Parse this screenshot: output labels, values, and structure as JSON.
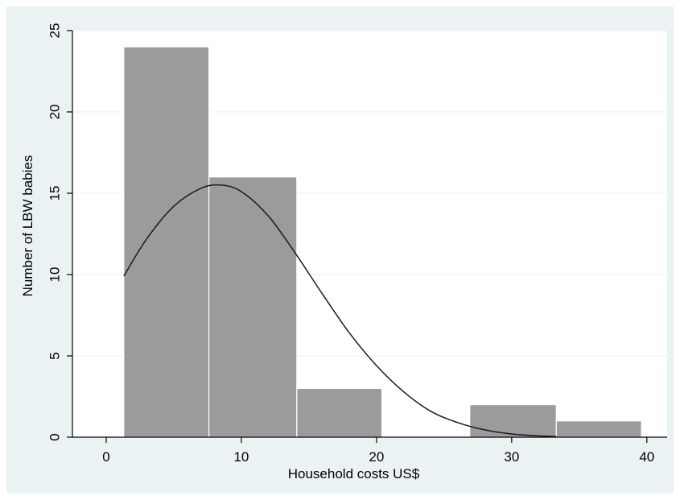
{
  "chart_data": {
    "type": "bar",
    "title": "",
    "xlabel": "Household costs US$",
    "ylabel": "Number of LBW babies",
    "xlim": [
      -2.5,
      41.5
    ],
    "ylim": [
      0,
      25
    ],
    "xticks": [
      0,
      10,
      20,
      30,
      40
    ],
    "yticks": [
      0,
      5,
      10,
      15,
      20,
      25
    ],
    "grid": "horizontal",
    "bins": [
      {
        "x0": 1.3,
        "x1": 7.6,
        "value": 24
      },
      {
        "x0": 7.6,
        "x1": 14.1,
        "value": 16
      },
      {
        "x0": 14.1,
        "x1": 20.4,
        "value": 3
      },
      {
        "x0": 20.4,
        "x1": 26.9,
        "value": 0
      },
      {
        "x0": 26.9,
        "x1": 33.3,
        "value": 2
      },
      {
        "x0": 33.3,
        "x1": 39.6,
        "value": 1
      }
    ],
    "normal_density_curve": {
      "x": [
        1.3,
        3,
        5,
        7,
        8.5,
        10,
        12,
        14,
        16,
        18,
        20,
        22,
        24,
        26,
        28,
        30,
        32,
        33.3
      ],
      "y": [
        9.9,
        12.2,
        14.2,
        15.3,
        15.5,
        15.1,
        13.6,
        11.3,
        8.8,
        6.4,
        4.4,
        2.8,
        1.6,
        0.9,
        0.45,
        0.2,
        0.08,
        0.04
      ]
    },
    "colors": {
      "bar_fill": "#9b9b9b",
      "bar_edge": "#ffffff",
      "curve": "#1a1a1a",
      "plot_background": "#ffffff",
      "outer_background": "#eaf2f3",
      "gridline": "#eaf2f3"
    }
  }
}
